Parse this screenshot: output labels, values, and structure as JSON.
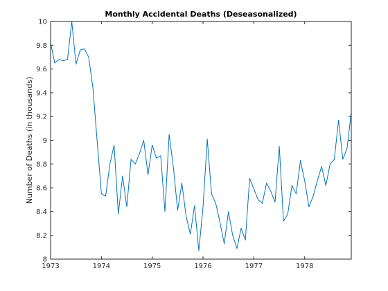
{
  "chart_data": {
    "type": "line",
    "title": "Monthly Accidental Deaths (Deseasonalized)",
    "xlabel": "",
    "ylabel": "Number of Deaths (in thousands)",
    "xlim": [
      1973,
      1978.917
    ],
    "ylim": [
      8,
      10
    ],
    "xticks": [
      "1973",
      "1974",
      "1975",
      "1976",
      "1977",
      "1978"
    ],
    "yticks": [
      "8",
      "8.2",
      "8.4",
      "8.6",
      "8.8",
      "9",
      "9.2",
      "9.4",
      "9.6",
      "9.8",
      "10"
    ],
    "grid": false,
    "line_color": "#0072bd",
    "series": [
      {
        "x": [
          1973,
          1973.083,
          1973.167,
          1973.25,
          1973.333,
          1973.417,
          1973.5,
          1973.583,
          1973.667,
          1973.75,
          1973.833,
          1973.917,
          1974,
          1974.083,
          1974.167,
          1974.25,
          1974.333,
          1974.417,
          1974.5,
          1974.583,
          1974.667,
          1974.75,
          1974.833,
          1974.917,
          1975,
          1975.083,
          1975.167,
          1975.25,
          1975.333,
          1975.417,
          1975.5,
          1975.583,
          1975.667,
          1975.75,
          1975.833,
          1975.917,
          1976,
          1976.083,
          1976.167,
          1976.25,
          1976.333,
          1976.417,
          1976.5,
          1976.583,
          1976.667,
          1976.75,
          1976.833,
          1976.917,
          1977,
          1977.083,
          1977.167,
          1977.25,
          1977.333,
          1977.417,
          1977.5,
          1977.583,
          1977.667,
          1977.75,
          1977.833,
          1977.917,
          1978,
          1978.083,
          1978.167,
          1978.25,
          1978.333,
          1978.417,
          1978.5,
          1978.583,
          1978.667,
          1978.75,
          1978.833,
          1978.917
        ],
        "values": [
          9.82,
          9.65,
          9.68,
          9.67,
          9.68,
          10.0,
          9.64,
          9.76,
          9.77,
          9.7,
          9.44,
          8.99,
          8.55,
          8.53,
          8.8,
          8.96,
          8.38,
          8.7,
          8.44,
          8.84,
          8.8,
          8.89,
          9.0,
          8.71,
          8.96,
          8.85,
          8.87,
          8.4,
          9.05,
          8.77,
          8.41,
          8.64,
          8.36,
          8.21,
          8.45,
          8.07,
          8.44,
          9.01,
          8.55,
          8.47,
          8.31,
          8.13,
          8.4,
          8.2,
          8.09,
          8.26,
          8.16,
          8.68,
          8.59,
          8.5,
          8.47,
          8.64,
          8.57,
          8.48,
          8.95,
          8.32,
          8.38,
          8.62,
          8.55,
          8.83,
          8.66,
          8.44,
          8.53,
          8.66,
          8.78,
          8.62,
          8.8,
          8.84,
          9.17,
          8.84,
          8.93,
          9.24
        ]
      }
    ]
  }
}
